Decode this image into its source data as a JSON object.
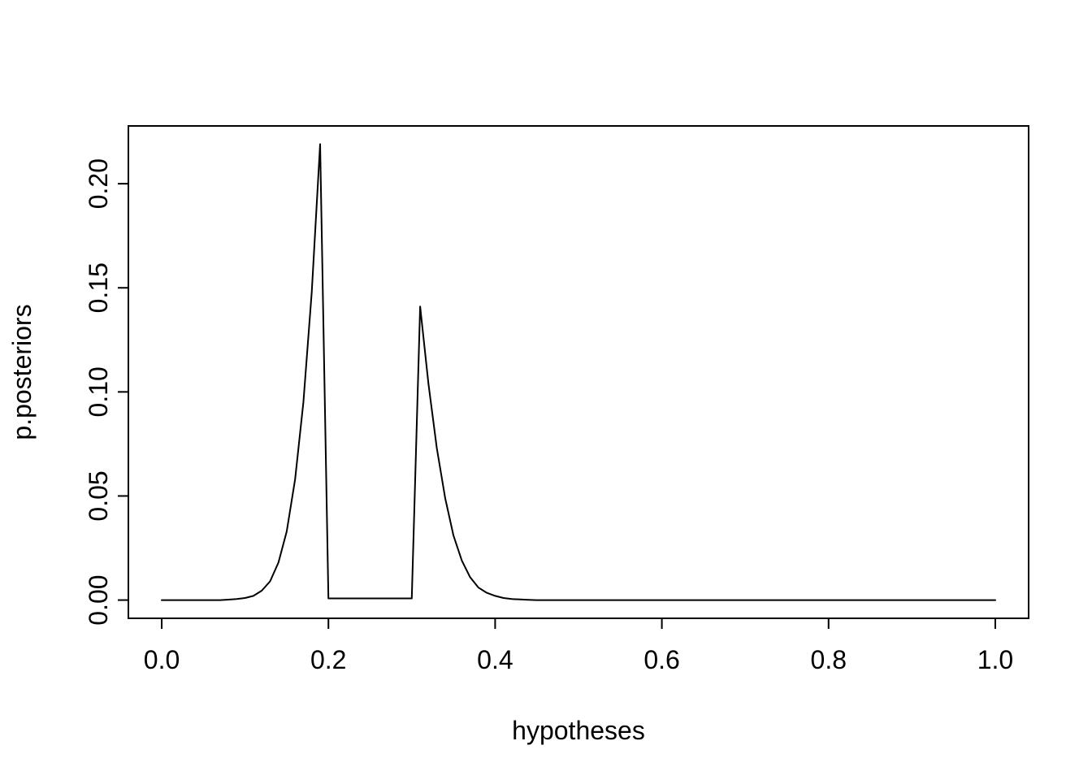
{
  "figure": {
    "background": "#ffffff",
    "text_color": "#000000"
  },
  "chart_data": {
    "type": "line",
    "title": "",
    "xlabel": "hypotheses",
    "ylabel": "p.posteriors",
    "xlim": [
      0,
      1
    ],
    "ylim": [
      0,
      0.219
    ],
    "grid": false,
    "legend": false,
    "line_color": "#000000",
    "x_ticks": {
      "values": [
        0,
        0.2,
        0.4,
        0.6,
        0.8,
        1.0
      ],
      "labels": [
        "0.0",
        "0.2",
        "0.4",
        "0.6",
        "0.8",
        "1.0"
      ]
    },
    "y_ticks": {
      "values": [
        0,
        0.05,
        0.1,
        0.15,
        0.2
      ],
      "labels": [
        "0.00",
        "0.05",
        "0.10",
        "0.15",
        "0.20"
      ]
    },
    "series": [
      {
        "name": "p.posteriors",
        "x": [
          0,
          0.01,
          0.02,
          0.03,
          0.04,
          0.05,
          0.06,
          0.07,
          0.08,
          0.09,
          0.1,
          0.11,
          0.12,
          0.13,
          0.14,
          0.15,
          0.16,
          0.17,
          0.18,
          0.19,
          0.2,
          0.21,
          0.22,
          0.23,
          0.24,
          0.25,
          0.26,
          0.27,
          0.28,
          0.29,
          0.3,
          0.31,
          0.32,
          0.33,
          0.34,
          0.35,
          0.36,
          0.37,
          0.38,
          0.39,
          0.4,
          0.41,
          0.42,
          0.43,
          0.44,
          0.45,
          0.46,
          0.47,
          0.48,
          0.49,
          0.5,
          0.51,
          0.52,
          0.53,
          0.54,
          0.55,
          0.56,
          0.57,
          0.58,
          0.59,
          0.6,
          0.61,
          0.62,
          0.63,
          0.64,
          0.65,
          0.66,
          0.67,
          0.68,
          0.69,
          0.7,
          0.71,
          0.72,
          0.73,
          0.74,
          0.75,
          0.76,
          0.77,
          0.78,
          0.79,
          0.8,
          0.81,
          0.82,
          0.83,
          0.84,
          0.85,
          0.86,
          0.87,
          0.88,
          0.89,
          0.9,
          0.91,
          0.92,
          0.93,
          0.94,
          0.95,
          0.96,
          0.97,
          0.98,
          0.99,
          1
        ],
        "y": [
          0,
          0,
          0,
          0,
          0,
          0,
          0,
          0,
          0.0002,
          0.0005,
          0.001,
          0.002,
          0.0045,
          0.009,
          0.018,
          0.033,
          0.058,
          0.095,
          0.148,
          0.219,
          0.0008,
          0.0008,
          0.0008,
          0.0008,
          0.0008,
          0.0008,
          0.0008,
          0.0008,
          0.0008,
          0.0008,
          0.0008,
          0.141,
          0.104,
          0.073,
          0.049,
          0.031,
          0.019,
          0.011,
          0.006,
          0.0035,
          0.002,
          0.001,
          0.0005,
          0.0003,
          0.0001,
          0,
          0,
          0,
          0,
          0,
          0,
          0,
          0,
          0,
          0,
          0,
          0,
          0,
          0,
          0,
          0,
          0,
          0,
          0,
          0,
          0,
          0,
          0,
          0,
          0,
          0,
          0,
          0,
          0,
          0,
          0,
          0,
          0,
          0,
          0,
          0,
          0,
          0,
          0,
          0,
          0,
          0,
          0,
          0,
          0,
          0,
          0,
          0,
          0,
          0,
          0,
          0,
          0,
          0,
          0,
          0
        ]
      }
    ]
  }
}
